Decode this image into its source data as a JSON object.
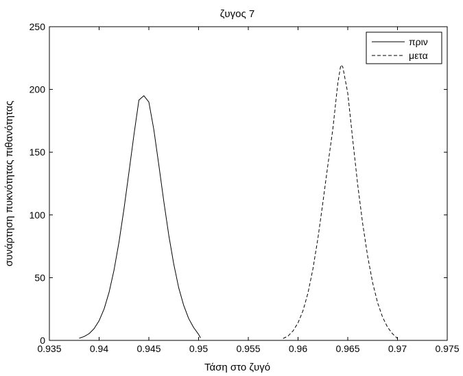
{
  "chart_data": {
    "type": "line",
    "title": "ζυγος 7",
    "xlabel": "Τάση στο ζυγό",
    "ylabel": "συνάρτηση πυκνότητας πιθανότητας",
    "xlim": [
      0.935,
      0.975
    ],
    "ylim": [
      0,
      250
    ],
    "xticks": [
      0.935,
      0.94,
      0.945,
      0.95,
      0.955,
      0.96,
      0.965,
      0.97,
      0.975
    ],
    "xtick_labels": [
      "0.935",
      "0.94",
      "0.945",
      "0.95",
      "0.955",
      "0.96",
      "0.965",
      "0.97",
      "0.975"
    ],
    "yticks": [
      0,
      50,
      100,
      150,
      200,
      250
    ],
    "ytick_labels": [
      "0",
      "50",
      "100",
      "150",
      "200",
      "250"
    ],
    "grid": false,
    "legend_position": "top-right",
    "series": [
      {
        "name": "πριν",
        "style": "solid",
        "color": "#000000",
        "x": [
          0.938,
          0.9385,
          0.939,
          0.9395,
          0.94,
          0.9405,
          0.941,
          0.9415,
          0.942,
          0.9425,
          0.943,
          0.9435,
          0.944,
          0.9445,
          0.945,
          0.9455,
          0.946,
          0.9465,
          0.947,
          0.9475,
          0.948,
          0.9485,
          0.949,
          0.9495,
          0.95,
          0.9502
        ],
        "y": [
          1.7,
          3.1,
          5.4,
          9.4,
          15.7,
          25.0,
          38.3,
          56.1,
          78.4,
          104.8,
          134.0,
          163.8,
          191.5,
          195.0,
          190.0,
          168.0,
          140.0,
          111.0,
          84.0,
          61.0,
          42.0,
          28.0,
          17.5,
          10.3,
          4.8,
          2.0
        ]
      },
      {
        "name": "μετα",
        "style": "dashed",
        "color": "#000000",
        "x": [
          0.9585,
          0.959,
          0.9595,
          0.96,
          0.9605,
          0.961,
          0.9615,
          0.962,
          0.9625,
          0.963,
          0.9635,
          0.964,
          0.9643,
          0.9645,
          0.965,
          0.9655,
          0.966,
          0.9665,
          0.967,
          0.9675,
          0.968,
          0.9685,
          0.969,
          0.9695,
          0.97
        ],
        "y": [
          1.5,
          3.5,
          7.6,
          14.0,
          23.7,
          37.8,
          57.1,
          81.4,
          110.0,
          139.8,
          168.5,
          205.0,
          219.5,
          218.0,
          197.0,
          160.0,
          124.0,
          93.0,
          67.0,
          46.0,
          30.0,
          18.5,
          10.5,
          5.3,
          1.5
        ]
      }
    ]
  }
}
